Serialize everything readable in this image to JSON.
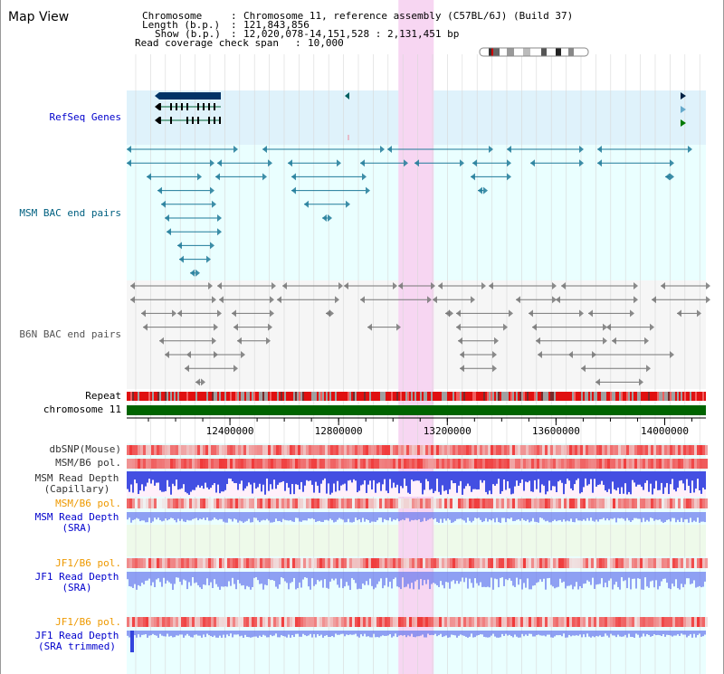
{
  "title": "Map View",
  "info": {
    "chromosome_label": "Chromosome",
    "chromosome_value": "Chromosome 11, reference assembly (C57BL/6J) (Build 37)",
    "length_label": "Length (b.p.)",
    "length_value": "121,843,856",
    "show_label": "Show (b.p.)",
    "show_value": "12,020,078-14,151,528 : 2,131,451 bp",
    "coverage_label": "Read coverage check span",
    "coverage_value": "10,000"
  },
  "tracks": {
    "refseq": "RefSeq Genes",
    "msm_bac": "MSM BAC end pairs",
    "b6n_bac": "B6N BAC end pairs",
    "repeat": "Repeat",
    "chromosome": "chromosome 11",
    "dbsnp": "dbSNP(Mouse)",
    "msm_b6_pol": "MSM/B6 pol.",
    "msm_depth_cap_1": "MSM Read Depth",
    "msm_depth_cap_2": "(Capillary)",
    "msm_b6_pol_sra": "MSM/B6 pol.",
    "msm_depth_sra_1": "MSM Read Depth",
    "msm_depth_sra_2": "(SRA)",
    "jf1_b6_pol": "JF1/B6 pol.",
    "jf1_depth_sra_1": "JF1 Read Depth",
    "jf1_depth_sra_2": "(SRA)",
    "jf1_b6_pol_2": "JF1/B6 pol.",
    "jf1_depth_trim_1": "JF1 Read Depth",
    "jf1_depth_trim_2": "(SRA trimmed)"
  },
  "axis": {
    "range_bp": [
      12020078,
      14151528
    ],
    "ticks": [
      {
        "value": 12400000,
        "label": "12400000"
      },
      {
        "value": 12800000,
        "label": "12800000"
      },
      {
        "value": 13200000,
        "label": "13200000"
      },
      {
        "value": 13600000,
        "label": "13600000"
      },
      {
        "value": 14000000,
        "label": "14000000"
      }
    ]
  },
  "highlight_bp": [
    13020000,
    13150000
  ],
  "colors": {
    "refseq_label": "#0000cc",
    "msm_label": "#006080",
    "b6n_label": "#555555",
    "pol_orange": "#ee9900",
    "depth_blue": "#0000cc",
    "refseq_bg": "#dff2fb",
    "cyan_bg": "#eaffff",
    "grey_bg": "#f6f6f6",
    "highlight": "#f7d6f2",
    "chromosome_green": "#006400"
  }
}
